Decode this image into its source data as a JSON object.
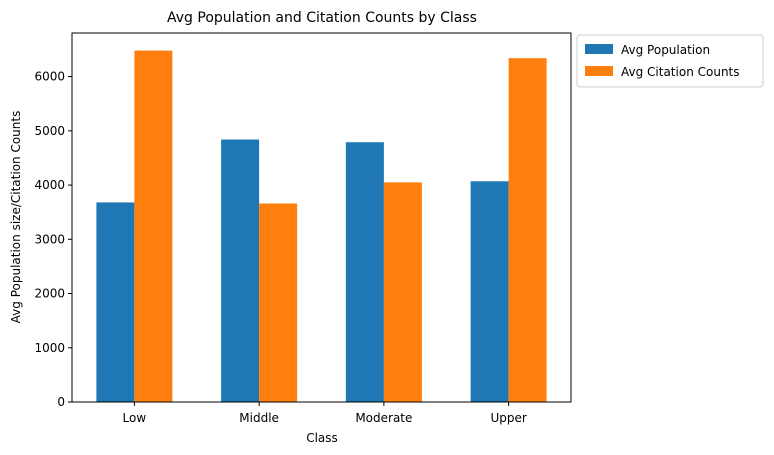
{
  "chart_data": {
    "type": "bar",
    "title": "Avg Population and Citation Counts by Class",
    "xlabel": "Class",
    "ylabel": "Avg Population size/Citation Counts",
    "categories": [
      "Low",
      "Middle",
      "Moderate",
      "Upper"
    ],
    "series": [
      {
        "name": "Avg Population",
        "values": [
          3680,
          4840,
          4790,
          4070
        ],
        "color": "#1f77b4"
      },
      {
        "name": "Avg Citation Counts",
        "values": [
          6480,
          3660,
          4050,
          6340
        ],
        "color": "#ff7f0e"
      }
    ],
    "ylim": [
      0,
      6804
    ],
    "yticks": [
      "0",
      "1000",
      "2000",
      "3000",
      "4000",
      "5000",
      "6000"
    ],
    "grid": false,
    "legend_position": "outside-top-right"
  }
}
